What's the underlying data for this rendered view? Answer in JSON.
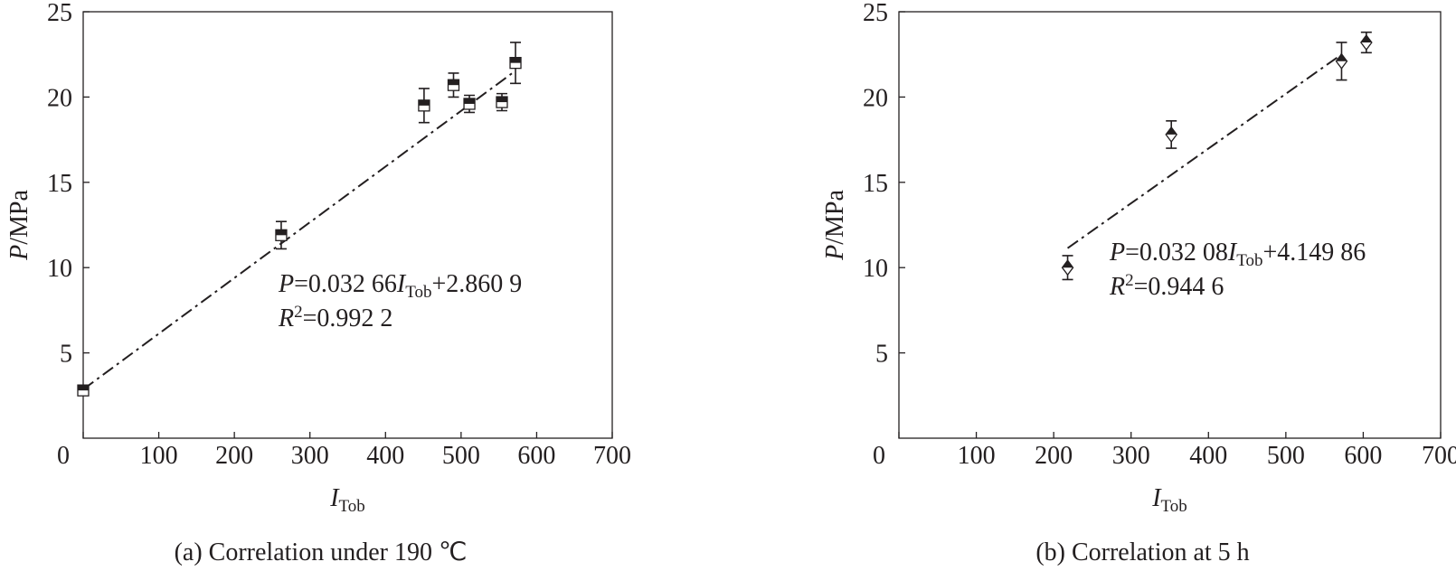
{
  "chart_data": [
    {
      "type": "scatter",
      "marker": "square",
      "color": "#231f20",
      "x": [
        0,
        262,
        451,
        490,
        511,
        554,
        572
      ],
      "values": [
        2.8,
        11.9,
        19.5,
        20.7,
        19.6,
        19.7,
        22.0
      ],
      "errors": [
        0.2,
        0.8,
        1.0,
        0.7,
        0.5,
        0.5,
        1.2
      ],
      "fit": {
        "x": [
          0,
          572
        ],
        "values": [
          2.86,
          21.54
        ],
        "style": "dashdot"
      },
      "xlim": [
        0,
        700
      ],
      "ylim": [
        0,
        25
      ],
      "xticks": [
        0,
        100,
        200,
        300,
        400,
        500,
        600,
        700
      ],
      "yticks": [
        5,
        10,
        15,
        20,
        25
      ],
      "xlabel": [
        "I",
        "Tob"
      ],
      "ylabel": [
        "P",
        "/MPa"
      ],
      "equation": [
        "P",
        "=0.032 66",
        "I",
        "Tob",
        "+2.860 9"
      ],
      "r2": [
        "R",
        "2",
        "=0.992 2"
      ],
      "caption": "(a) Correlation under 190 ℃"
    },
    {
      "type": "scatter",
      "marker": "diamond",
      "color": "#231f20",
      "x": [
        218,
        352,
        572,
        604
      ],
      "values": [
        10.0,
        17.8,
        22.1,
        23.2
      ],
      "errors": [
        0.7,
        0.8,
        1.1,
        0.6
      ],
      "fit": {
        "x": [
          218,
          572
        ],
        "values": [
          11.14,
          22.5
        ],
        "style": "dashdot"
      },
      "xlim": [
        0,
        700
      ],
      "ylim": [
        0,
        25
      ],
      "xticks": [
        0,
        100,
        200,
        300,
        400,
        500,
        600,
        700
      ],
      "yticks": [
        5,
        10,
        15,
        20,
        25
      ],
      "xlabel": [
        "I",
        "Tob"
      ],
      "ylabel": [
        "P",
        "/MPa"
      ],
      "equation": [
        "P",
        "=0.032 08",
        "I",
        "Tob",
        "+4.149 86"
      ],
      "r2": [
        "R",
        "2",
        "=0.944 6"
      ],
      "caption": "(b) Correlation at 5 h"
    }
  ]
}
